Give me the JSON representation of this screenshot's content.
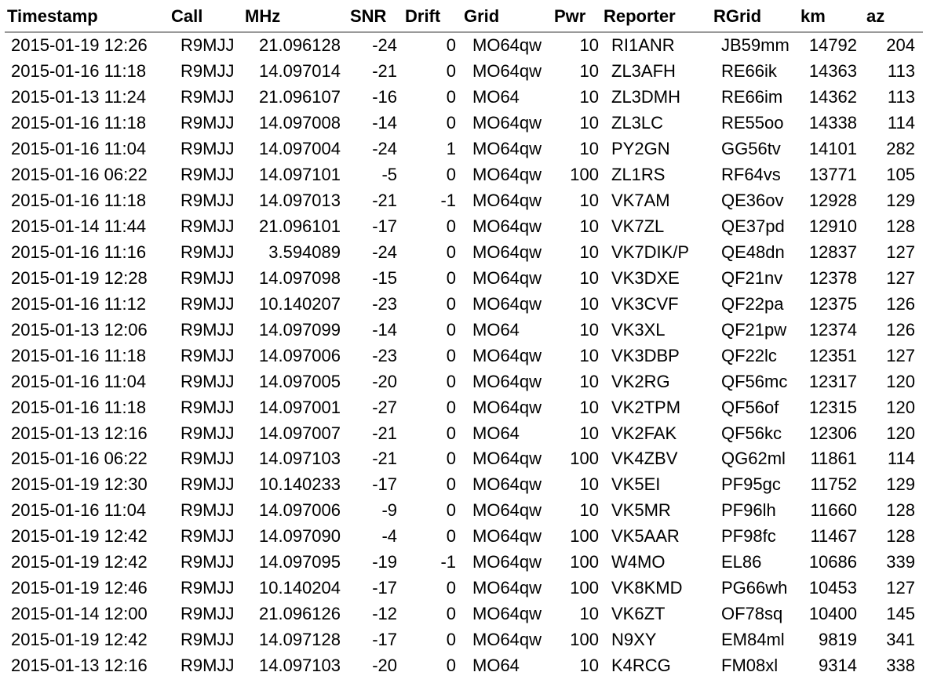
{
  "columns": [
    {
      "key": "timestamp",
      "label": "Timestamp"
    },
    {
      "key": "call",
      "label": "Call"
    },
    {
      "key": "mhz",
      "label": "MHz"
    },
    {
      "key": "snr",
      "label": "SNR"
    },
    {
      "key": "drift",
      "label": "Drift"
    },
    {
      "key": "grid",
      "label": "Grid"
    },
    {
      "key": "pwr",
      "label": "Pwr"
    },
    {
      "key": "reporter",
      "label": "Reporter"
    },
    {
      "key": "rgrid",
      "label": "RGrid"
    },
    {
      "key": "km",
      "label": "km"
    },
    {
      "key": "az",
      "label": "az"
    }
  ],
  "rows": [
    {
      "timestamp": "2015-01-19 12:26",
      "call": "R9MJJ",
      "mhz": "21.096128",
      "snr": "-24",
      "drift": "0",
      "grid": "MO64qw",
      "pwr": "10",
      "reporter": "RI1ANR",
      "rgrid": "JB59mm",
      "km": "14792",
      "az": "204"
    },
    {
      "timestamp": "2015-01-16 11:18",
      "call": "R9MJJ",
      "mhz": "14.097014",
      "snr": "-21",
      "drift": "0",
      "grid": "MO64qw",
      "pwr": "10",
      "reporter": "ZL3AFH",
      "rgrid": "RE66ik",
      "km": "14363",
      "az": "113"
    },
    {
      "timestamp": "2015-01-13 11:24",
      "call": "R9MJJ",
      "mhz": "21.096107",
      "snr": "-16",
      "drift": "0",
      "grid": "MO64",
      "pwr": "10",
      "reporter": "ZL3DMH",
      "rgrid": "RE66im",
      "km": "14362",
      "az": "113"
    },
    {
      "timestamp": "2015-01-16 11:18",
      "call": "R9MJJ",
      "mhz": "14.097008",
      "snr": "-14",
      "drift": "0",
      "grid": "MO64qw",
      "pwr": "10",
      "reporter": "ZL3LC",
      "rgrid": "RE55oo",
      "km": "14338",
      "az": "114"
    },
    {
      "timestamp": "2015-01-16 11:04",
      "call": "R9MJJ",
      "mhz": "14.097004",
      "snr": "-24",
      "drift": "1",
      "grid": "MO64qw",
      "pwr": "10",
      "reporter": "PY2GN",
      "rgrid": "GG56tv",
      "km": "14101",
      "az": "282"
    },
    {
      "timestamp": "2015-01-16 06:22",
      "call": "R9MJJ",
      "mhz": "14.097101",
      "snr": "-5",
      "drift": "0",
      "grid": "MO64qw",
      "pwr": "100",
      "reporter": "ZL1RS",
      "rgrid": "RF64vs",
      "km": "13771",
      "az": "105"
    },
    {
      "timestamp": "2015-01-16 11:18",
      "call": "R9MJJ",
      "mhz": "14.097013",
      "snr": "-21",
      "drift": "-1",
      "grid": "MO64qw",
      "pwr": "10",
      "reporter": "VK7AM",
      "rgrid": "QE36ov",
      "km": "12928",
      "az": "129"
    },
    {
      "timestamp": "2015-01-14 11:44",
      "call": "R9MJJ",
      "mhz": "21.096101",
      "snr": "-17",
      "drift": "0",
      "grid": "MO64qw",
      "pwr": "10",
      "reporter": "VK7ZL",
      "rgrid": "QE37pd",
      "km": "12910",
      "az": "128"
    },
    {
      "timestamp": "2015-01-16 11:16",
      "call": "R9MJJ",
      "mhz": "3.594089",
      "snr": "-24",
      "drift": "0",
      "grid": "MO64qw",
      "pwr": "10",
      "reporter": "VK7DIK/P",
      "rgrid": "QE48dn",
      "km": "12837",
      "az": "127"
    },
    {
      "timestamp": "2015-01-19 12:28",
      "call": "R9MJJ",
      "mhz": "14.097098",
      "snr": "-15",
      "drift": "0",
      "grid": "MO64qw",
      "pwr": "10",
      "reporter": "VK3DXE",
      "rgrid": "QF21nv",
      "km": "12378",
      "az": "127"
    },
    {
      "timestamp": "2015-01-16 11:12",
      "call": "R9MJJ",
      "mhz": "10.140207",
      "snr": "-23",
      "drift": "0",
      "grid": "MO64qw",
      "pwr": "10",
      "reporter": "VK3CVF",
      "rgrid": "QF22pa",
      "km": "12375",
      "az": "126"
    },
    {
      "timestamp": "2015-01-13 12:06",
      "call": "R9MJJ",
      "mhz": "14.097099",
      "snr": "-14",
      "drift": "0",
      "grid": "MO64",
      "pwr": "10",
      "reporter": "VK3XL",
      "rgrid": "QF21pw",
      "km": "12374",
      "az": "126"
    },
    {
      "timestamp": "2015-01-16 11:18",
      "call": "R9MJJ",
      "mhz": "14.097006",
      "snr": "-23",
      "drift": "0",
      "grid": "MO64qw",
      "pwr": "10",
      "reporter": "VK3DBP",
      "rgrid": "QF22lc",
      "km": "12351",
      "az": "127"
    },
    {
      "timestamp": "2015-01-16 11:04",
      "call": "R9MJJ",
      "mhz": "14.097005",
      "snr": "-20",
      "drift": "0",
      "grid": "MO64qw",
      "pwr": "10",
      "reporter": "VK2RG",
      "rgrid": "QF56mc",
      "km": "12317",
      "az": "120"
    },
    {
      "timestamp": "2015-01-16 11:18",
      "call": "R9MJJ",
      "mhz": "14.097001",
      "snr": "-27",
      "drift": "0",
      "grid": "MO64qw",
      "pwr": "10",
      "reporter": "VK2TPM",
      "rgrid": "QF56of",
      "km": "12315",
      "az": "120"
    },
    {
      "timestamp": "2015-01-13 12:16",
      "call": "R9MJJ",
      "mhz": "14.097007",
      "snr": "-21",
      "drift": "0",
      "grid": "MO64",
      "pwr": "10",
      "reporter": "VK2FAK",
      "rgrid": "QF56kc",
      "km": "12306",
      "az": "120"
    },
    {
      "timestamp": "2015-01-16 06:22",
      "call": "R9MJJ",
      "mhz": "14.097103",
      "snr": "-21",
      "drift": "0",
      "grid": "MO64qw",
      "pwr": "100",
      "reporter": "VK4ZBV",
      "rgrid": "QG62ml",
      "km": "11861",
      "az": "114"
    },
    {
      "timestamp": "2015-01-19 12:30",
      "call": "R9MJJ",
      "mhz": "10.140233",
      "snr": "-17",
      "drift": "0",
      "grid": "MO64qw",
      "pwr": "10",
      "reporter": "VK5EI",
      "rgrid": "PF95gc",
      "km": "11752",
      "az": "129"
    },
    {
      "timestamp": "2015-01-16 11:04",
      "call": "R9MJJ",
      "mhz": "14.097006",
      "snr": "-9",
      "drift": "0",
      "grid": "MO64qw",
      "pwr": "10",
      "reporter": "VK5MR",
      "rgrid": "PF96lh",
      "km": "11660",
      "az": "128"
    },
    {
      "timestamp": "2015-01-19 12:42",
      "call": "R9MJJ",
      "mhz": "14.097090",
      "snr": "-4",
      "drift": "0",
      "grid": "MO64qw",
      "pwr": "100",
      "reporter": "VK5AAR",
      "rgrid": "PF98fc",
      "km": "11467",
      "az": "128"
    },
    {
      "timestamp": "2015-01-19 12:42",
      "call": "R9MJJ",
      "mhz": "14.097095",
      "snr": "-19",
      "drift": "-1",
      "grid": "MO64qw",
      "pwr": "100",
      "reporter": "W4MO",
      "rgrid": "EL86",
      "km": "10686",
      "az": "339"
    },
    {
      "timestamp": "2015-01-19 12:46",
      "call": "R9MJJ",
      "mhz": "10.140204",
      "snr": "-17",
      "drift": "0",
      "grid": "MO64qw",
      "pwr": "100",
      "reporter": "VK8KMD",
      "rgrid": "PG66wh",
      "km": "10453",
      "az": "127"
    },
    {
      "timestamp": "2015-01-14 12:00",
      "call": "R9MJJ",
      "mhz": "21.096126",
      "snr": "-12",
      "drift": "0",
      "grid": "MO64qw",
      "pwr": "10",
      "reporter": "VK6ZT",
      "rgrid": "OF78sq",
      "km": "10400",
      "az": "145"
    },
    {
      "timestamp": "2015-01-19 12:42",
      "call": "R9MJJ",
      "mhz": "14.097128",
      "snr": "-17",
      "drift": "0",
      "grid": "MO64qw",
      "pwr": "100",
      "reporter": "N9XY",
      "rgrid": "EM84ml",
      "km": "9819",
      "az": "341"
    },
    {
      "timestamp": "2015-01-13 12:16",
      "call": "R9MJJ",
      "mhz": "14.097103",
      "snr": "-20",
      "drift": "0",
      "grid": "MO64",
      "pwr": "10",
      "reporter": "K4RCG",
      "rgrid": "FM08xl",
      "km": "9314",
      "az": "338"
    }
  ]
}
